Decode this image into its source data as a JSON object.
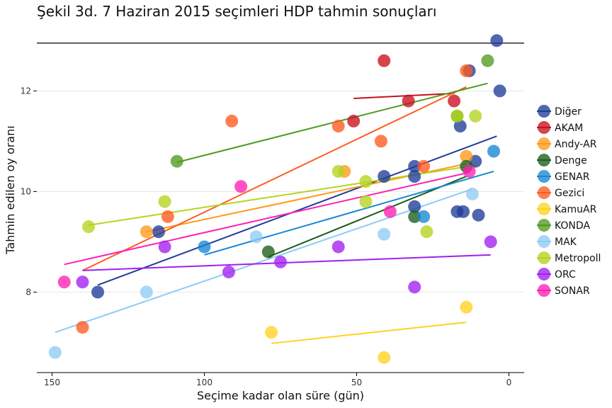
{
  "chart_data": {
    "type": "scatter",
    "title": "Şekil 3d. 7 Haziran 2015 seçimleri HDP tahmin sonuçları",
    "xlabel": "Seçime kadar olan süre (gün)",
    "ylabel": "Tahmin edilen oy oranı",
    "x_reversed": true,
    "xlim": [
      155,
      -5
    ],
    "ylim": [
      6.4,
      13.3
    ],
    "xticks": [
      150,
      100,
      50,
      0
    ],
    "yticks": [
      8,
      10,
      12
    ],
    "reference_line_y": 12.95,
    "legend_position": "right",
    "series": [
      {
        "name": "Diğer",
        "color": "#1f3c99",
        "points": [
          [
            135,
            8.0
          ],
          [
            115,
            9.2
          ],
          [
            41,
            10.3
          ],
          [
            31,
            10.3
          ],
          [
            31,
            10.5
          ],
          [
            31,
            9.7
          ],
          [
            16,
            11.3
          ],
          [
            15,
            9.6
          ],
          [
            17,
            9.6
          ],
          [
            13,
            12.4
          ],
          [
            11,
            10.6
          ],
          [
            10,
            9.53
          ],
          [
            4,
            13.0
          ],
          [
            3,
            12.0
          ]
        ],
        "fit": [
          [
            135,
            8.14
          ],
          [
            4,
            11.1
          ]
        ]
      },
      {
        "name": "AKAM",
        "color": "#c8101e",
        "points": [
          [
            41,
            12.6
          ],
          [
            33,
            11.8
          ],
          [
            51,
            11.4
          ],
          [
            18,
            11.8
          ]
        ],
        "fit": [
          [
            51,
            11.85
          ],
          [
            18,
            11.95
          ]
        ]
      },
      {
        "name": "Andy-AR",
        "color": "#ff9a1a",
        "points": [
          [
            119,
            9.2
          ],
          [
            54,
            10.4
          ],
          [
            14,
            10.7
          ]
        ],
        "fit": [
          [
            119,
            9.2
          ],
          [
            14,
            10.55
          ]
        ]
      },
      {
        "name": "Denge",
        "color": "#1a5e1a",
        "points": [
          [
            79,
            8.8
          ],
          [
            31,
            9.5
          ],
          [
            14,
            10.5
          ]
        ],
        "fit": [
          [
            79,
            8.7
          ],
          [
            14,
            10.3
          ]
        ]
      },
      {
        "name": "GENAR",
        "color": "#1787d0",
        "points": [
          [
            100,
            8.9
          ],
          [
            28,
            9.5
          ],
          [
            5,
            10.8
          ]
        ],
        "fit": [
          [
            100,
            8.74
          ],
          [
            5,
            10.4
          ]
        ]
      },
      {
        "name": "Gezici",
        "color": "#ff5a1f",
        "points": [
          [
            140,
            7.3
          ],
          [
            112,
            9.5
          ],
          [
            91,
            11.4
          ],
          [
            56,
            11.3
          ],
          [
            42,
            11.0
          ],
          [
            28,
            10.5
          ],
          [
            14,
            12.4
          ]
        ],
        "fit": [
          [
            140,
            8.43
          ],
          [
            14,
            12.08
          ]
        ]
      },
      {
        "name": "KamuAR",
        "color": "#ffd21f",
        "points": [
          [
            78,
            7.2
          ],
          [
            41,
            6.7
          ],
          [
            14,
            7.7
          ]
        ],
        "fit": [
          [
            78,
            6.98
          ],
          [
            14,
            7.4
          ]
        ]
      },
      {
        "name": "KONDA",
        "color": "#4f9a1f",
        "points": [
          [
            109,
            10.6
          ],
          [
            17,
            11.5
          ],
          [
            7,
            12.6
          ]
        ],
        "fit": [
          [
            109,
            10.58
          ],
          [
            7,
            12.15
          ]
        ]
      },
      {
        "name": "MAK",
        "color": "#8fcbf5",
        "points": [
          [
            149,
            6.8
          ],
          [
            119,
            8.0
          ],
          [
            83,
            9.1
          ],
          [
            41,
            9.15
          ],
          [
            12,
            9.95
          ]
        ],
        "fit": [
          [
            149,
            7.2
          ],
          [
            12,
            10.05
          ]
        ]
      },
      {
        "name": "Metropoll",
        "color": "#b4d41e",
        "points": [
          [
            138,
            9.3
          ],
          [
            113,
            9.8
          ],
          [
            56,
            10.4
          ],
          [
            47,
            10.2
          ],
          [
            47,
            9.8
          ],
          [
            27,
            9.2
          ],
          [
            17,
            11.5
          ],
          [
            11,
            11.5
          ]
        ],
        "fit": [
          [
            138,
            9.33
          ],
          [
            11,
            10.52
          ]
        ]
      },
      {
        "name": "ORC",
        "color": "#a020f0",
        "points": [
          [
            140,
            8.2
          ],
          [
            113,
            8.9
          ],
          [
            92,
            8.4
          ],
          [
            75,
            8.6
          ],
          [
            56,
            8.9
          ],
          [
            31,
            8.1
          ],
          [
            6,
            9.0
          ]
        ],
        "fit": [
          [
            140,
            8.43
          ],
          [
            6,
            8.74
          ]
        ]
      },
      {
        "name": "SONAR",
        "color": "#ff1fb4",
        "points": [
          [
            146,
            8.2
          ],
          [
            88,
            10.1
          ],
          [
            39,
            9.6
          ],
          [
            13,
            10.4
          ]
        ],
        "fit": [
          [
            146,
            8.55
          ],
          [
            13,
            10.38
          ]
        ]
      }
    ]
  }
}
